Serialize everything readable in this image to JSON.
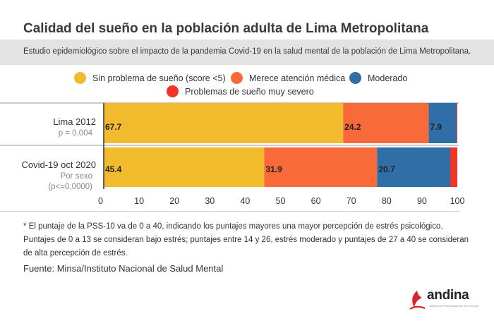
{
  "header": {
    "title": "Calidad del sueño en la población adulta de Lima Metropolitana",
    "subtitle": "Estudio epidemiológico sobre el impacto de la pandemia Covid-19 en la salud mental de la población de Lima Metropolitana."
  },
  "legend": [
    {
      "label": "Sin problema de sueño (score <5)",
      "color": "#f2bb2e"
    },
    {
      "label": "Merece atención médica",
      "color": "#f96a3b"
    },
    {
      "label": "Moderado",
      "color": "#2f6ea7"
    },
    {
      "label": "Problemas de sueño muy severo",
      "color": "#f03427"
    }
  ],
  "chart_data": {
    "type": "bar",
    "orientation": "horizontal",
    "stacked": true,
    "categories": [
      "Lima 2012",
      "Covid-19 oct 2020"
    ],
    "category_sublabels": [
      [
        "p = 0,004"
      ],
      [
        "Por sexo",
        "(p<=0,0000)"
      ]
    ],
    "series": [
      {
        "name": "Sin problema de sueño (score <5)",
        "values": [
          67.7,
          45.4
        ],
        "color": "#f2bb2e"
      },
      {
        "name": "Merece atención médica",
        "values": [
          24.2,
          31.9
        ],
        "color": "#f96a3b"
      },
      {
        "name": "Moderado",
        "values": [
          7.9,
          20.7
        ],
        "color": "#2f6ea7"
      },
      {
        "name": "Problemas de sueño muy severo",
        "values": [
          0.2,
          2.0
        ],
        "color": "#f03427"
      }
    ],
    "data_labels": [
      [
        "67.7",
        "24.2",
        "7.9",
        ""
      ],
      [
        "45.4",
        "31.9",
        "20.7",
        ""
      ]
    ],
    "xlim": [
      0,
      100
    ],
    "xticks": [
      0,
      10,
      20,
      30,
      40,
      50,
      60,
      70,
      80,
      90,
      100
    ],
    "grid": false,
    "legend_position": "top"
  },
  "footnote": "* El puntaje de la PSS-10 va de 0 a 40, indicando los puntajes mayores una mayor percepción de estrés psicológico. Puntajes de 0 a 13 se consideran bajo estrés; puntajes entre 14 y 26, estrés moderado y puntajes de 27 a 40 se consideran de alta percepción de estrés.",
  "source": "Fuente: Minsa/Instituto Nacional de Salud Mental",
  "logo": {
    "name": "andina",
    "tagline": "AGENCIA PERUANA DE NOTICIAS"
  }
}
